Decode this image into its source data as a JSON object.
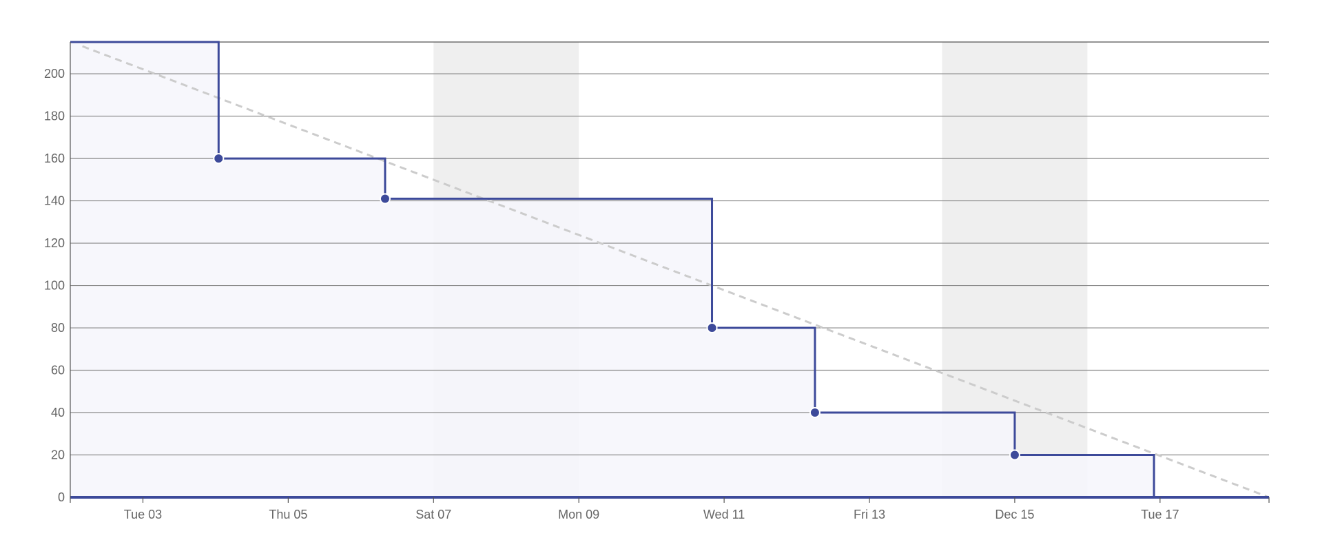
{
  "chart_data": {
    "type": "line",
    "subtype": "step-burndown",
    "title": "",
    "xlabel": "",
    "ylabel": "",
    "ylim": [
      0,
      215
    ],
    "xlim": [
      "2024-12-02T00:00",
      "2024-12-18T12:00"
    ],
    "yticks": [
      0,
      20,
      40,
      60,
      80,
      100,
      120,
      140,
      160,
      180,
      200
    ],
    "xticks": [
      {
        "date": "2024-12-03",
        "label": "Tue 03"
      },
      {
        "date": "2024-12-05",
        "label": "Thu 05"
      },
      {
        "date": "2024-12-07",
        "label": "Sat 07"
      },
      {
        "date": "2024-12-09",
        "label": "Mon 09"
      },
      {
        "date": "2024-12-11",
        "label": "Wed 11"
      },
      {
        "date": "2024-12-13",
        "label": "Fri 13"
      },
      {
        "date": "2024-12-15",
        "label": "Dec 15"
      },
      {
        "date": "2024-12-17",
        "label": "Tue 17"
      }
    ],
    "weekend_bands": [
      {
        "start": "2024-12-07",
        "end": "2024-12-09"
      },
      {
        "start": "2024-12-14",
        "end": "2024-12-16"
      }
    ],
    "grid": true,
    "legend": "none",
    "series": [
      {
        "style": "step",
        "color": "#3d4a9a",
        "fill": "#f6f6fb",
        "points": [
          {
            "x": "2024-12-02T00:00",
            "y": 215,
            "marker": false
          },
          {
            "x": "2024-12-04T01:00",
            "y": 160,
            "marker": true
          },
          {
            "x": "2024-12-06T08:00",
            "y": 141,
            "marker": true
          },
          {
            "x": "2024-12-10T20:00",
            "y": 80,
            "marker": true
          },
          {
            "x": "2024-12-12T06:00",
            "y": 40,
            "marker": true
          },
          {
            "x": "2024-12-15T00:00",
            "y": 20,
            "marker": true
          },
          {
            "x": "2024-12-16T22:00",
            "y": 0,
            "marker": false
          }
        ]
      },
      {
        "style": "dashed",
        "color": "#cccccc",
        "points": [
          {
            "x": "2024-12-02T04:00",
            "y": 213
          },
          {
            "x": "2024-12-18T12:00",
            "y": 0
          }
        ]
      }
    ]
  }
}
